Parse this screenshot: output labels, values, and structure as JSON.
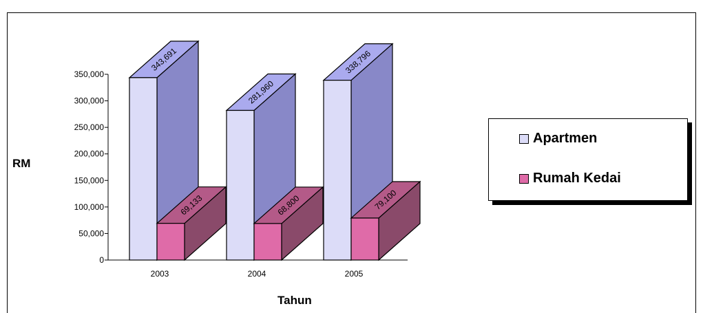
{
  "chart_data": {
    "type": "bar",
    "categories": [
      "2003",
      "2004",
      "2005"
    ],
    "series": [
      {
        "name": "Apartmen",
        "values": [
          343691,
          281960,
          338796
        ],
        "color": "#DCDCF8",
        "side_color": "#8888C8",
        "top_color": "#AAAAEE"
      },
      {
        "name": "Rumah Kedai",
        "values": [
          69133,
          68800,
          79100
        ],
        "color": "#DF6BA8",
        "side_color": "#8A4A6A",
        "top_color": "#B45A88"
      }
    ],
    "data_labels": [
      [
        "343,691",
        "281,960",
        "338,796"
      ],
      [
        "69,133",
        "68,800",
        "79,100"
      ]
    ],
    "ylabel": "RM",
    "xlabel": "Tahun",
    "ylim": [
      0,
      350000
    ],
    "yticks": [
      0,
      50000,
      100000,
      150000,
      200000,
      250000,
      300000,
      350000
    ],
    "ytick_labels": [
      "0",
      "50,000",
      "100,000",
      "150,000",
      "200,000",
      "250,000",
      "300,000",
      "350,000"
    ],
    "legend_position": "right",
    "grid": false
  }
}
